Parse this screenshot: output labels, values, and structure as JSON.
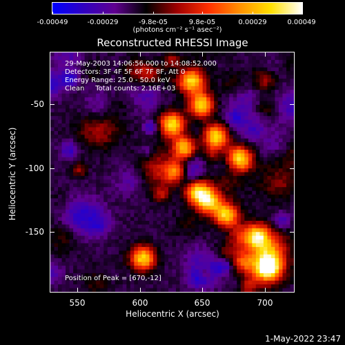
{
  "colorbar": {
    "ticks": [
      "-0.00049",
      "-0.00029",
      "-9.8e-05",
      "9.8e-05",
      "0.00029",
      "0.00049"
    ],
    "unit_label": "(photons cm⁻² s⁻¹ asec⁻²)",
    "colors": [
      "#0000ff",
      "#3000c0",
      "#600090",
      "#000000",
      "#a00000",
      "#ff3000",
      "#ff9000",
      "#ffe000",
      "#ffffff"
    ]
  },
  "chart_data": {
    "type": "heatmap",
    "title": "Reconstructed RHESSI Image",
    "xlabel": "Heliocentric X (arcsec)",
    "ylabel": "Heliocentric Y (arcsec)",
    "xlim": [
      530,
      725
    ],
    "ylim": [
      -197,
      -12
    ],
    "x_ticks": [
      "550",
      "600",
      "650",
      "700"
    ],
    "y_ticks": [
      "-50",
      "-100",
      "-150"
    ],
    "clim": [
      -0.00049,
      0.00049
    ],
    "annotations": [
      "29-May-2003 14:06:56.000 to 14:08:52.000",
      "Detectors: 3F 4F 5F 6F 7F 8F, Att 0",
      "Energy Range: 25.0 - 50.0 keV",
      "Clean     Total counts: 2.16E+03",
      "Position of Peak = [670,-12]"
    ]
  },
  "timestamp": "1-May-2022 23:47"
}
